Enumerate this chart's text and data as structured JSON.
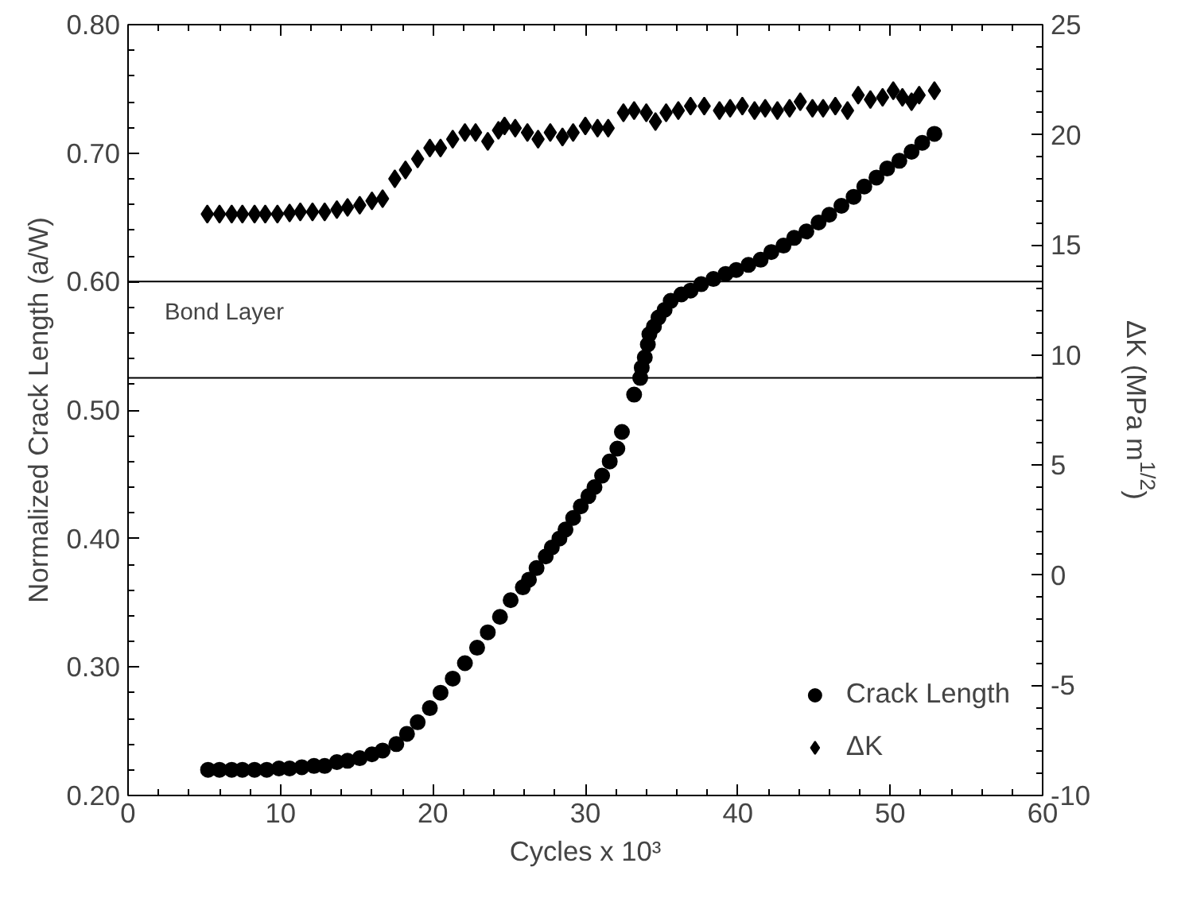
{
  "chart_data": {
    "type": "scatter",
    "xlabel": "Cycles x 10³",
    "ylabel": "Normalized Crack Length (a/W)",
    "y2label": "ΔK (MPa m$^{1/2}$)",
    "xlim": [
      0,
      60
    ],
    "xticks": [
      0,
      10,
      20,
      30,
      40,
      50,
      60
    ],
    "ylim": [
      0.2,
      0.8
    ],
    "yticks": [
      {
        "value": 0.2,
        "label": "0.20"
      },
      {
        "value": 0.3,
        "label": "0.30"
      },
      {
        "value": 0.4,
        "label": "0.40"
      },
      {
        "value": 0.5,
        "label": "0.50"
      },
      {
        "value": 0.6,
        "label": "0.60"
      },
      {
        "value": 0.7,
        "label": "0.70"
      },
      {
        "value": 0.8,
        "label": "0.80"
      }
    ],
    "y2lim": [
      -10,
      25
    ],
    "y2ticks": [
      -10,
      -5,
      0,
      5,
      10,
      15,
      20,
      25
    ],
    "grid": false,
    "legend": "bottom right",
    "ref_lines": [
      {
        "axis": "y",
        "value": 0.6,
        "label": "Bond Layer",
        "color": "#000000"
      },
      {
        "axis": "y",
        "value": 0.525,
        "color": "#000000"
      }
    ],
    "series": [
      {
        "name": "Crack Length",
        "color": "#000000",
        "marker": "circle",
        "x": [
          5.25,
          6.0,
          6.8,
          7.5,
          8.3,
          9.1,
          9.9,
          10.6,
          11.4,
          12.2,
          12.9,
          13.7,
          14.4,
          15.2,
          16.0,
          16.7,
          17.6,
          18.3,
          19.0,
          19.8,
          20.5,
          21.3,
          22.1,
          22.9,
          23.6,
          24.4,
          25.1,
          25.9,
          26.3,
          26.8,
          27.4,
          27.8,
          28.3,
          28.7,
          29.2,
          29.7,
          30.2,
          30.6,
          31.1,
          31.6,
          32.1,
          32.4,
          33.2,
          33.6,
          33.7,
          33.9,
          34.1,
          34.2,
          34.5,
          34.8,
          35.2,
          35.6,
          36.3,
          36.9,
          37.6,
          38.4,
          39.2,
          39.9,
          40.7,
          41.5,
          42.2,
          43.0,
          43.7,
          44.5,
          45.3,
          46.0,
          46.8,
          47.6,
          48.3,
          49.1,
          49.8,
          50.6,
          51.4,
          52.1,
          52.9
        ],
        "values": [
          0.22,
          0.22,
          0.22,
          0.22,
          0.22,
          0.22,
          0.221,
          0.221,
          0.222,
          0.223,
          0.223,
          0.226,
          0.227,
          0.229,
          0.232,
          0.235,
          0.24,
          0.248,
          0.257,
          0.268,
          0.28,
          0.291,
          0.303,
          0.315,
          0.327,
          0.339,
          0.352,
          0.362,
          0.368,
          0.377,
          0.386,
          0.393,
          0.4,
          0.407,
          0.416,
          0.425,
          0.433,
          0.44,
          0.449,
          0.46,
          0.47,
          0.483,
          0.512,
          0.525,
          0.533,
          0.541,
          0.551,
          0.559,
          0.565,
          0.572,
          0.578,
          0.585,
          0.59,
          0.593,
          0.598,
          0.602,
          0.606,
          0.609,
          0.613,
          0.617,
          0.623,
          0.628,
          0.634,
          0.639,
          0.646,
          0.652,
          0.659,
          0.666,
          0.674,
          0.681,
          0.688,
          0.694,
          0.701,
          0.708,
          0.715
        ]
      },
      {
        "name": "ΔK",
        "color": "#000000",
        "marker": "diamond",
        "axis": "y2",
        "x": [
          5.2,
          6.0,
          6.8,
          7.5,
          8.3,
          9.0,
          9.8,
          10.6,
          11.3,
          12.1,
          12.9,
          13.7,
          14.4,
          15.2,
          16.0,
          16.7,
          17.5,
          18.2,
          19.0,
          19.8,
          20.5,
          21.3,
          22.1,
          22.8,
          23.6,
          24.3,
          24.7,
          25.4,
          26.2,
          26.9,
          27.7,
          28.5,
          29.2,
          30.0,
          30.8,
          31.5,
          32.5,
          33.2,
          34.0,
          34.6,
          35.3,
          36.1,
          36.9,
          37.8,
          38.8,
          39.5,
          40.3,
          41.1,
          41.8,
          42.6,
          43.4,
          44.1,
          44.9,
          45.6,
          46.4,
          47.2,
          47.9,
          48.7,
          49.5,
          50.2,
          50.8,
          51.4,
          51.9,
          52.9
        ],
        "values": [
          16.4,
          16.4,
          16.4,
          16.4,
          16.4,
          16.4,
          16.4,
          16.45,
          16.5,
          16.5,
          16.5,
          16.6,
          16.7,
          16.8,
          17.0,
          17.1,
          18.0,
          18.4,
          18.9,
          19.4,
          19.4,
          19.8,
          20.1,
          20.1,
          19.7,
          20.2,
          20.4,
          20.3,
          20.1,
          19.8,
          20.1,
          19.9,
          20.1,
          20.4,
          20.3,
          20.3,
          21.0,
          21.1,
          21.0,
          20.6,
          21.0,
          21.1,
          21.3,
          21.3,
          21.1,
          21.2,
          21.3,
          21.1,
          21.2,
          21.1,
          21.2,
          21.5,
          21.2,
          21.2,
          21.3,
          21.1,
          21.8,
          21.6,
          21.7,
          22.0,
          21.7,
          21.5,
          21.8,
          22.0
        ]
      }
    ]
  }
}
